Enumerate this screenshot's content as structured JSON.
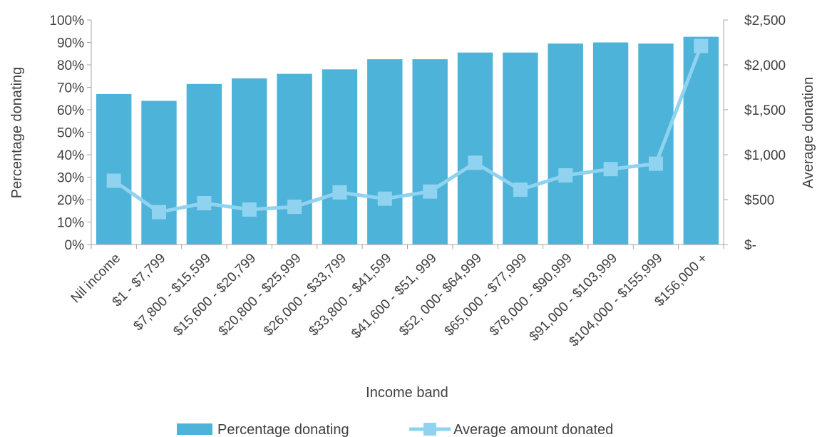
{
  "chart_data": {
    "type": "bar",
    "xlabel": "Income band",
    "ylabel": "Percentage donating",
    "y2label": "Average donation",
    "categories": [
      "Nil income",
      "$1 - $7,799",
      "$7,800 - $15,599",
      "$15,600 - $20,799",
      "$20,800 - $25,999",
      "$26,000 - $33,799",
      "$33,800 - $41,599",
      "$41,600 - $51, 999",
      "$52, 000- $64,999",
      "$65,000 - $77,999",
      "$78,000 - $90,999",
      "$91,000 - $103,999",
      "$104,000 - $155,999",
      "$156,000 +"
    ],
    "series": [
      {
        "name": "Percentage donating",
        "type": "bar",
        "axis": "left",
        "color": "#4eb3d8",
        "values": [
          67,
          64,
          71.5,
          74,
          76,
          78,
          82.5,
          82.5,
          85.5,
          85.5,
          89.5,
          90,
          89.5,
          92.5
        ]
      },
      {
        "name": "Average amount donated",
        "type": "line",
        "axis": "right",
        "color": "#8fd3f0",
        "values": [
          710,
          360,
          460,
          390,
          420,
          580,
          510,
          590,
          910,
          610,
          770,
          840,
          900,
          2210
        ]
      }
    ],
    "ylim": [
      0,
      100
    ],
    "y2lim": [
      0,
      2500
    ],
    "yticks": [
      "0%",
      "10%",
      "20%",
      "30%",
      "40%",
      "50%",
      "60%",
      "70%",
      "80%",
      "90%",
      "100%"
    ],
    "y2ticks": [
      "$-",
      "$500",
      "$1,000",
      "$1,500",
      "$2,000",
      "$2,500"
    ],
    "legend_position": "bottom",
    "grid": false
  }
}
